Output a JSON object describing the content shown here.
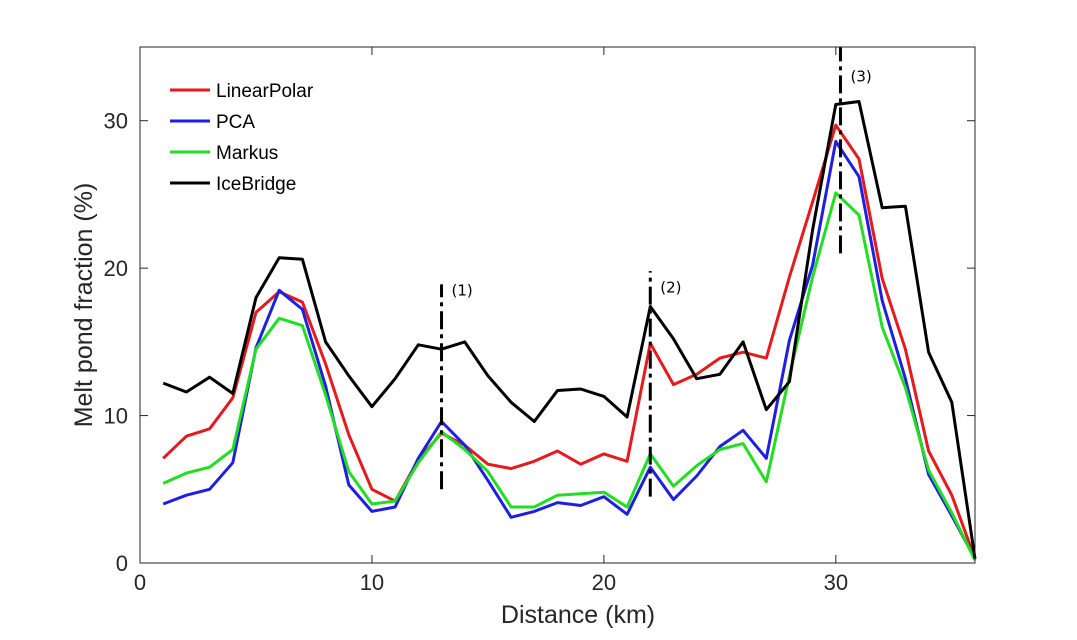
{
  "chart_data": {
    "type": "line",
    "xlabel": "Distance (km)",
    "ylabel": "Melt pond fraction (%)",
    "xlim": [
      0,
      36
    ],
    "ylim": [
      0,
      35
    ],
    "xticks": [
      0,
      10,
      20,
      30
    ],
    "yticks": [
      0,
      10,
      20,
      30
    ],
    "grid": false,
    "legend_position": "top-left",
    "x": [
      1,
      2,
      3,
      4,
      5,
      6,
      7,
      8,
      9,
      10,
      11,
      12,
      13,
      14,
      15,
      16,
      17,
      18,
      19,
      20,
      21,
      22,
      23,
      24,
      25,
      26,
      27,
      28,
      29,
      30,
      31,
      32,
      33,
      34,
      35,
      36
    ],
    "series": [
      {
        "name": "LinearPolar",
        "color": "#e41a1c",
        "values": [
          7.1,
          8.6,
          9.1,
          11.2,
          17.0,
          18.4,
          17.7,
          13.5,
          8.7,
          5.0,
          4.2,
          7.0,
          8.8,
          8.0,
          6.7,
          6.4,
          6.9,
          7.6,
          6.7,
          7.4,
          6.9,
          14.9,
          12.1,
          12.8,
          13.9,
          14.3,
          13.9,
          19.4,
          24.5,
          29.7,
          27.4,
          19.3,
          14.5,
          7.6,
          4.6,
          0.3
        ]
      },
      {
        "name": "PCA",
        "color": "#1f1fe0",
        "values": [
          4.0,
          4.6,
          5.0,
          6.8,
          14.6,
          18.5,
          17.2,
          12.0,
          5.3,
          3.5,
          3.8,
          7.1,
          9.6,
          8.0,
          5.6,
          3.1,
          3.5,
          4.1,
          3.9,
          4.5,
          3.3,
          6.5,
          4.3,
          5.9,
          7.9,
          9.0,
          7.1,
          15.1,
          20.2,
          28.6,
          26.2,
          17.8,
          12.5,
          6.0,
          3.2,
          0.3
        ]
      },
      {
        "name": "Markus",
        "color": "#22dd22",
        "values": [
          5.4,
          6.1,
          6.5,
          7.7,
          14.5,
          16.6,
          16.1,
          11.4,
          6.2,
          4.0,
          4.2,
          6.8,
          8.9,
          7.7,
          6.2,
          3.8,
          3.8,
          4.6,
          4.7,
          4.8,
          3.8,
          7.4,
          5.2,
          6.6,
          7.7,
          8.1,
          5.5,
          12.7,
          19.4,
          25.1,
          23.6,
          16.0,
          11.9,
          6.3,
          3.4,
          0.2
        ]
      },
      {
        "name": "IceBridge",
        "color": "#000000",
        "values": [
          12.2,
          11.6,
          12.6,
          11.5,
          18.0,
          20.7,
          20.6,
          15.0,
          12.7,
          10.6,
          12.5,
          14.8,
          14.5,
          15.0,
          12.7,
          10.9,
          9.6,
          11.7,
          11.8,
          11.3,
          9.9,
          17.4,
          15.2,
          12.5,
          12.8,
          15.0,
          10.4,
          12.3,
          22.6,
          31.1,
          31.3,
          24.1,
          24.2,
          14.3,
          10.9,
          0.3
        ]
      }
    ],
    "annotations": [
      {
        "label": "(1)",
        "x": 13,
        "y_range": [
          5.0,
          18.9
        ],
        "label_y": 18.5
      },
      {
        "label": "(2)",
        "x": 22,
        "y_range": [
          4.5,
          19.8
        ],
        "label_y": 18.7
      },
      {
        "label": "(3)",
        "x": 30.2,
        "y_range": [
          21.0,
          35.0
        ],
        "label_y": 33.0
      }
    ],
    "colors": {
      "axis": "#262626",
      "background": "#ffffff"
    }
  }
}
